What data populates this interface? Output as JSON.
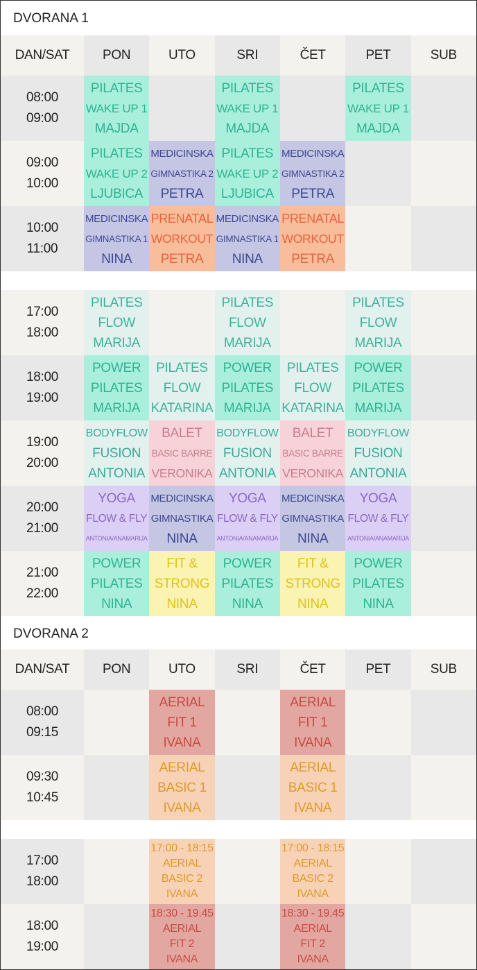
{
  "sections": [
    {
      "title": "DVORANA 1",
      "header": [
        "DAN/SAT",
        "PON",
        "UTO",
        "SRI",
        "ČET",
        "PET",
        "SUB"
      ],
      "blocks": [
        [
          {
            "time": [
              "08:00",
              "09:00"
            ],
            "cells": [
              {
                "lines": [
                  "PILATES",
                  "WAKE UP 1",
                  "MAJDA"
                ],
                "color": "#a9efdc",
                "text_color": "#2fb392"
              },
              null,
              {
                "lines": [
                  "PILATES",
                  "WAKE UP 1",
                  "MAJDA"
                ],
                "color": "#a9efdc",
                "text_color": "#2fb392"
              },
              null,
              {
                "lines": [
                  "PILATES",
                  "WAKE UP 1",
                  "MAJDA"
                ],
                "color": "#a9efdc",
                "text_color": "#2fb392"
              },
              null
            ]
          },
          {
            "time": [
              "09:00",
              "10:00"
            ],
            "cells": [
              {
                "lines": [
                  "PILATES",
                  "WAKE UP 2",
                  "LJUBICA"
                ],
                "color": "#a9efdc",
                "text_color": "#2fb392"
              },
              {
                "lines": [
                  "MEDICINSKA",
                  "GIMNASTIKA 2",
                  "PETRA"
                ],
                "color": "#c4c6e3",
                "text_color": "#3d4892"
              },
              {
                "lines": [
                  "PILATES",
                  "WAKE UP 2",
                  "LJUBICA"
                ],
                "color": "#a9efdc",
                "text_color": "#2fb392"
              },
              {
                "lines": [
                  "MEDICINSKA",
                  "GIMNASTIKA 2",
                  "PETRA"
                ],
                "color": "#c4c6e3",
                "text_color": "#3d4892"
              },
              null,
              null
            ]
          },
          {
            "time": [
              "10:00",
              "11:00"
            ],
            "cells": [
              {
                "lines": [
                  "MEDICINSKA",
                  "GIMNASTIKA 1",
                  "NINA"
                ],
                "color": "#c4c6e3",
                "text_color": "#3d4892"
              },
              {
                "lines": [
                  "PRENATAL",
                  "WORKOUT",
                  "PETRA"
                ],
                "color": "#f8bd9a",
                "text_color": "#e8643d"
              },
              {
                "lines": [
                  "MEDICINSKA",
                  "GIMNASTIKA 1",
                  "NINA"
                ],
                "color": "#c4c6e3",
                "text_color": "#3d4892"
              },
              {
                "lines": [
                  "PRENATAL",
                  "WORKOUT",
                  "PETRA"
                ],
                "color": "#f8bd9a",
                "text_color": "#e8643d"
              },
              null,
              null
            ]
          }
        ],
        [
          {
            "time": [
              "17:00",
              "18:00"
            ],
            "cells": [
              {
                "lines": [
                  "PILATES",
                  "FLOW",
                  "MARIJA"
                ],
                "color": "#e2f1ee",
                "text_color": "#3bb39a"
              },
              null,
              {
                "lines": [
                  "PILATES",
                  "FLOW",
                  "MARIJA"
                ],
                "color": "#e2f1ee",
                "text_color": "#3bb39a"
              },
              null,
              {
                "lines": [
                  "PILATES",
                  "FLOW",
                  "MARIJA"
                ],
                "color": "#e2f1ee",
                "text_color": "#3bb39a"
              },
              null
            ]
          },
          {
            "time": [
              "18:00",
              "19:00"
            ],
            "cells": [
              {
                "lines": [
                  "POWER",
                  "PILATES",
                  "MARIJA"
                ],
                "color": "#a9efdc",
                "text_color": "#2fb392"
              },
              {
                "lines": [
                  "PILATES",
                  "FLOW",
                  "KATARINA"
                ],
                "color": "#e2f1ee",
                "text_color": "#3bb39a"
              },
              {
                "lines": [
                  "POWER",
                  "PILATES",
                  "MARIJA"
                ],
                "color": "#a9efdc",
                "text_color": "#2fb392"
              },
              {
                "lines": [
                  "PILATES",
                  "FLOW",
                  "KATARINA"
                ],
                "color": "#e2f1ee",
                "text_color": "#3bb39a"
              },
              {
                "lines": [
                  "POWER",
                  "PILATES",
                  "MARIJA"
                ],
                "color": "#a9efdc",
                "text_color": "#2fb392"
              },
              null
            ]
          },
          {
            "time": [
              "19:00",
              "20:00"
            ],
            "cells": [
              {
                "lines": [
                  "BODYFLOW",
                  "FUSION",
                  "ANTONIA"
                ],
                "color": "#e2f1ee",
                "text_color": "#3aa89a"
              },
              {
                "lines": [
                  "BALET",
                  "BASIC BARRE",
                  "VERONIKA"
                ],
                "color": "#f8d2d9",
                "text_color": "#c57f8b"
              },
              {
                "lines": [
                  "BODYFLOW",
                  "FUSION",
                  "ANTONIA"
                ],
                "color": "#e2f1ee",
                "text_color": "#3aa89a"
              },
              {
                "lines": [
                  "BALET",
                  "BASIC BARRE",
                  "VERONIKA"
                ],
                "color": "#f8d2d9",
                "text_color": "#c57f8b"
              },
              {
                "lines": [
                  "BODYFLOW",
                  "FUSION",
                  "ANTONIA"
                ],
                "color": "#e2f1ee",
                "text_color": "#3aa89a"
              },
              null
            ]
          },
          {
            "time": [
              "20:00",
              "21:00"
            ],
            "cells": [
              {
                "lines": [
                  "YOGA",
                  "FLOW & FLY",
                  "ANTONIA/ANAMARIJA"
                ],
                "color": "#dccff6",
                "text_color": "#8b67c2"
              },
              {
                "lines": [
                  "MEDICINSKA",
                  "GIMNASTIKA",
                  "NINA"
                ],
                "color": "#c4c6e3",
                "text_color": "#3d4892"
              },
              {
                "lines": [
                  "YOGA",
                  "FLOW & FLY",
                  "ANTONIA/ANAMARIJA"
                ],
                "color": "#dccff6",
                "text_color": "#8b67c2"
              },
              {
                "lines": [
                  "MEDICINSKA",
                  "GIMNASTIKA",
                  "NINA"
                ],
                "color": "#c4c6e3",
                "text_color": "#3d4892"
              },
              {
                "lines": [
                  "YOGA",
                  "FLOW & FLY",
                  "ANTONIA/ANAMARIJA"
                ],
                "color": "#dccff6",
                "text_color": "#8b67c2"
              },
              null
            ]
          },
          {
            "time": [
              "21:00",
              "22:00"
            ],
            "cells": [
              {
                "lines": [
                  "POWER",
                  "PILATES",
                  "NINA"
                ],
                "color": "#a9efdc",
                "text_color": "#2fb392"
              },
              {
                "lines": [
                  "FIT &",
                  "STRONG",
                  "NINA"
                ],
                "color": "#fbf3b1",
                "text_color": "#e0c11b"
              },
              {
                "lines": [
                  "POWER",
                  "PILATES",
                  "NINA"
                ],
                "color": "#a9efdc",
                "text_color": "#2fb392"
              },
              {
                "lines": [
                  "FIT &",
                  "STRONG",
                  "NINA"
                ],
                "color": "#fbf3b1",
                "text_color": "#e0c11b"
              },
              {
                "lines": [
                  "POWER",
                  "PILATES",
                  "NINA"
                ],
                "color": "#a9efdc",
                "text_color": "#2fb392"
              },
              null
            ]
          }
        ]
      ]
    },
    {
      "title": "DVORANA 2",
      "header": [
        "DAN/SAT",
        "PON",
        "UTO",
        "SRI",
        "ČET",
        "PET",
        "SUB"
      ],
      "blocks": [
        [
          {
            "time": [
              "08:00",
              "09:15"
            ],
            "cells": [
              null,
              {
                "lines": [
                  "AERIAL",
                  "FIT  1",
                  "IVANA"
                ],
                "color": "#e3a7a2",
                "text_color": "#c84a42"
              },
              null,
              {
                "lines": [
                  "AERIAL",
                  "FIT  1",
                  "IVANA"
                ],
                "color": "#e3a7a2",
                "text_color": "#c84a42"
              },
              null,
              null
            ]
          },
          {
            "time": [
              "09:30",
              "10:45"
            ],
            "cells": [
              null,
              {
                "lines": [
                  "AERIAL",
                  "BASIC 1",
                  "IVANA"
                ],
                "color": "#f8d2b6",
                "text_color": "#e09a2a"
              },
              null,
              {
                "lines": [
                  "AERIAL",
                  "BASIC 1",
                  "IVANA"
                ],
                "color": "#f8d2b6",
                "text_color": "#e09a2a"
              },
              null,
              null
            ]
          }
        ],
        [
          {
            "time": [
              "17:00",
              "18:00"
            ],
            "cells": [
              null,
              {
                "lines": [
                  "17:00 - 18:15",
                  "AERIAL",
                  "BASIC 2",
                  "IVANA"
                ],
                "color": "#f8d2b6",
                "text_color": "#e09a2a"
              },
              null,
              {
                "lines": [
                  "17:00 - 18:15",
                  "AERIAL",
                  "BASIC 2",
                  "IVANA"
                ],
                "color": "#f8d2b6",
                "text_color": "#e09a2a"
              },
              null,
              null
            ]
          },
          {
            "time": [
              "18:00",
              "19:00"
            ],
            "cells": [
              null,
              {
                "lines": [
                  "18:30 - 19.45",
                  "AERIAL",
                  "FIT 2",
                  "IVANA"
                ],
                "color": "#e3a7a2",
                "text_color": "#c84a42"
              },
              null,
              {
                "lines": [
                  "18:30 - 19.45",
                  "AERIAL",
                  "FIT 2",
                  "IVANA"
                ],
                "color": "#e3a7a2",
                "text_color": "#c84a42"
              },
              null,
              null
            ]
          }
        ]
      ]
    }
  ]
}
